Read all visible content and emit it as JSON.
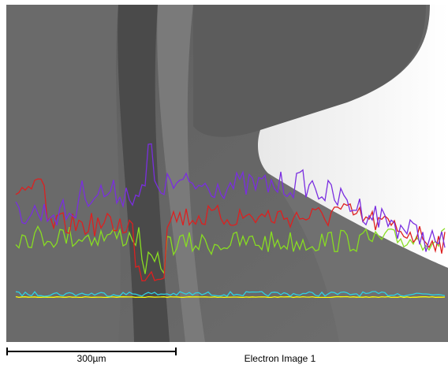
{
  "scale_bar": {
    "label": "300µm"
  },
  "caption": "Electron Image 1"
}
